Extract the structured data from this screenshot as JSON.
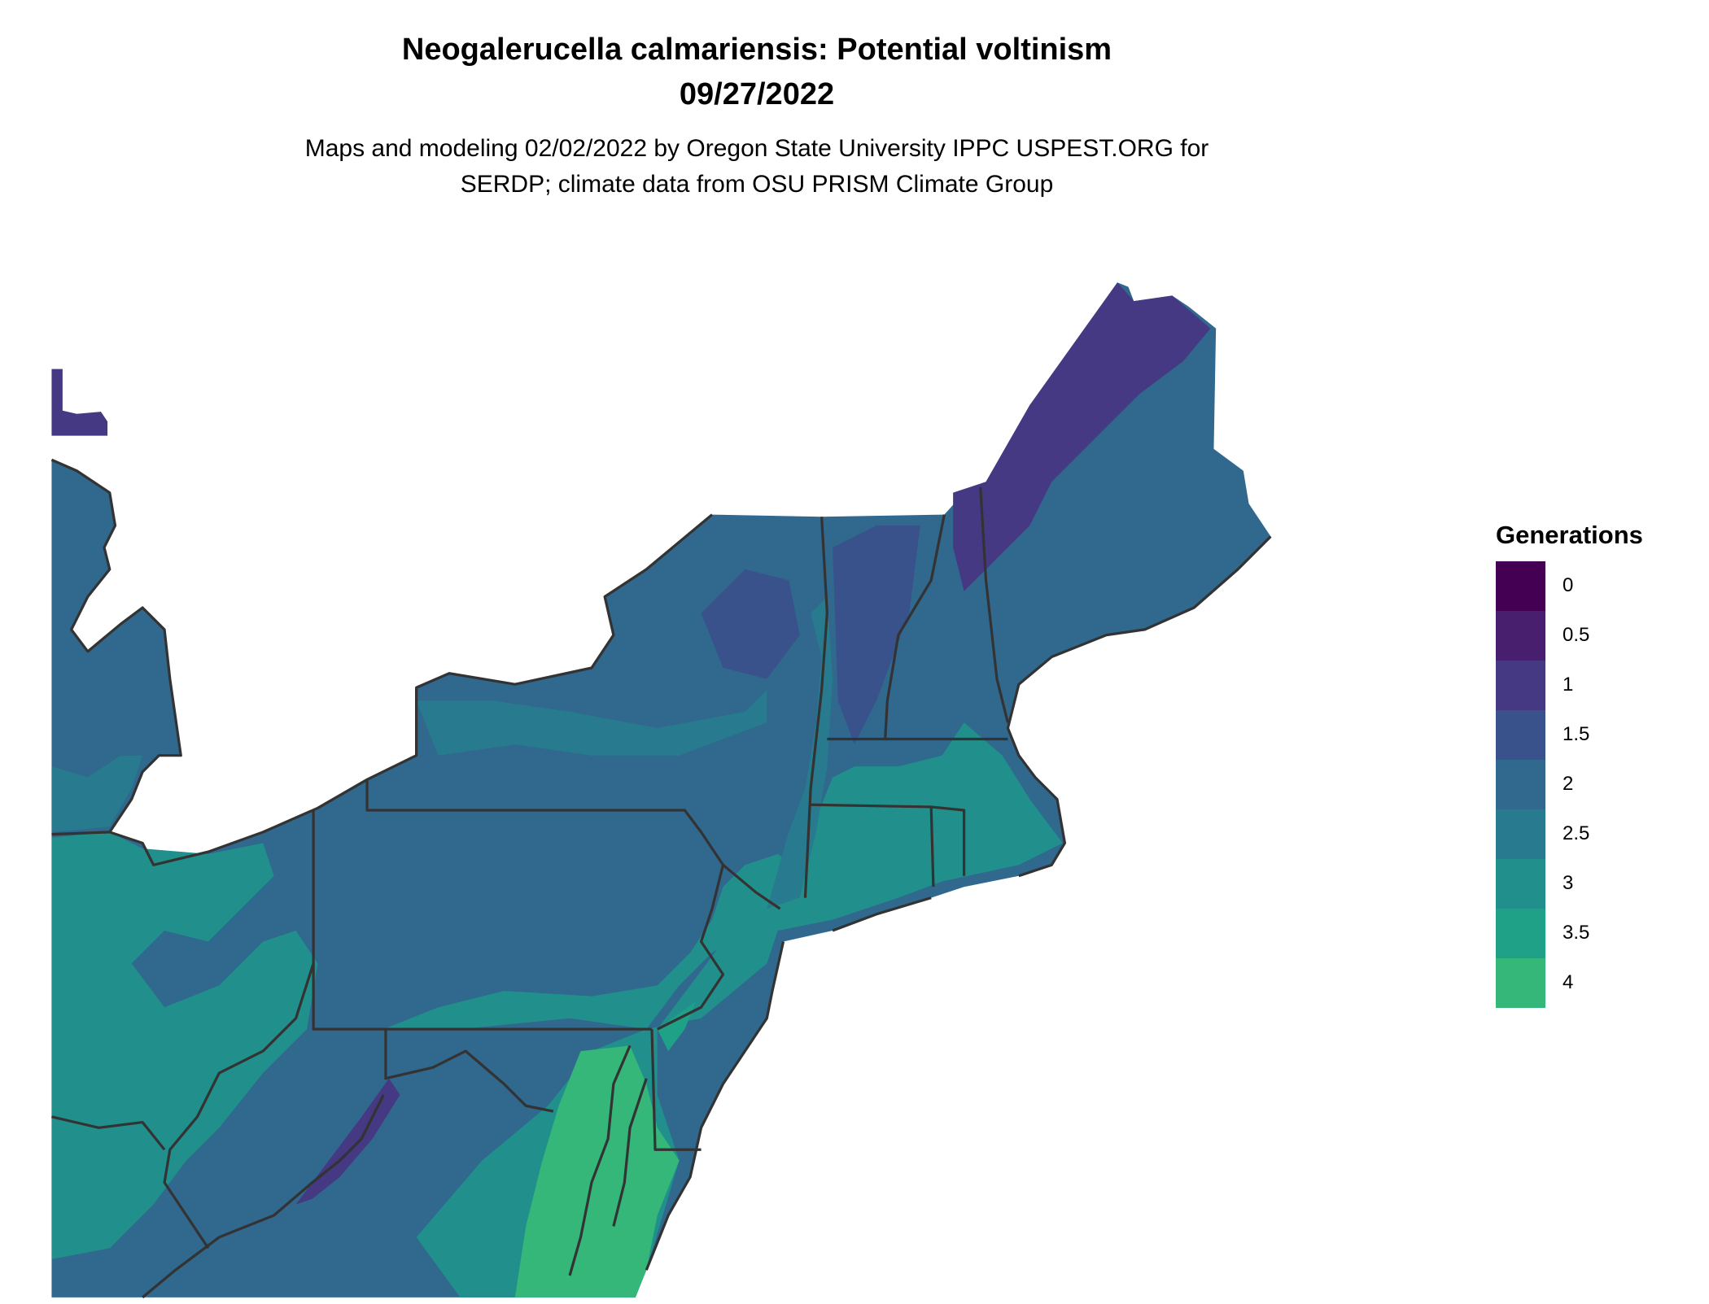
{
  "title_line1": "Neogalerucella calmariensis: Potential voltinism",
  "title_line2": "09/27/2022",
  "subtitle_line1": "Maps and modeling 02/02/2022 by Oregon State University IPPC USPEST.ORG for",
  "subtitle_line2": "SERDP; climate data from OSU PRISM Climate Group",
  "legend": {
    "title": "Generations",
    "items": [
      {
        "label": "0",
        "color": "#440154"
      },
      {
        "label": "0.5",
        "color": "#481f6f"
      },
      {
        "label": "1",
        "color": "#443982"
      },
      {
        "label": "1.5",
        "color": "#3a528b"
      },
      {
        "label": "2",
        "color": "#30688e"
      },
      {
        "label": "2.5",
        "color": "#287b8e"
      },
      {
        "label": "3",
        "color": "#21908c"
      },
      {
        "label": "3.5",
        "color": "#1fa188"
      },
      {
        "label": "4",
        "color": "#35b779"
      }
    ]
  },
  "border_color": "#333333"
}
